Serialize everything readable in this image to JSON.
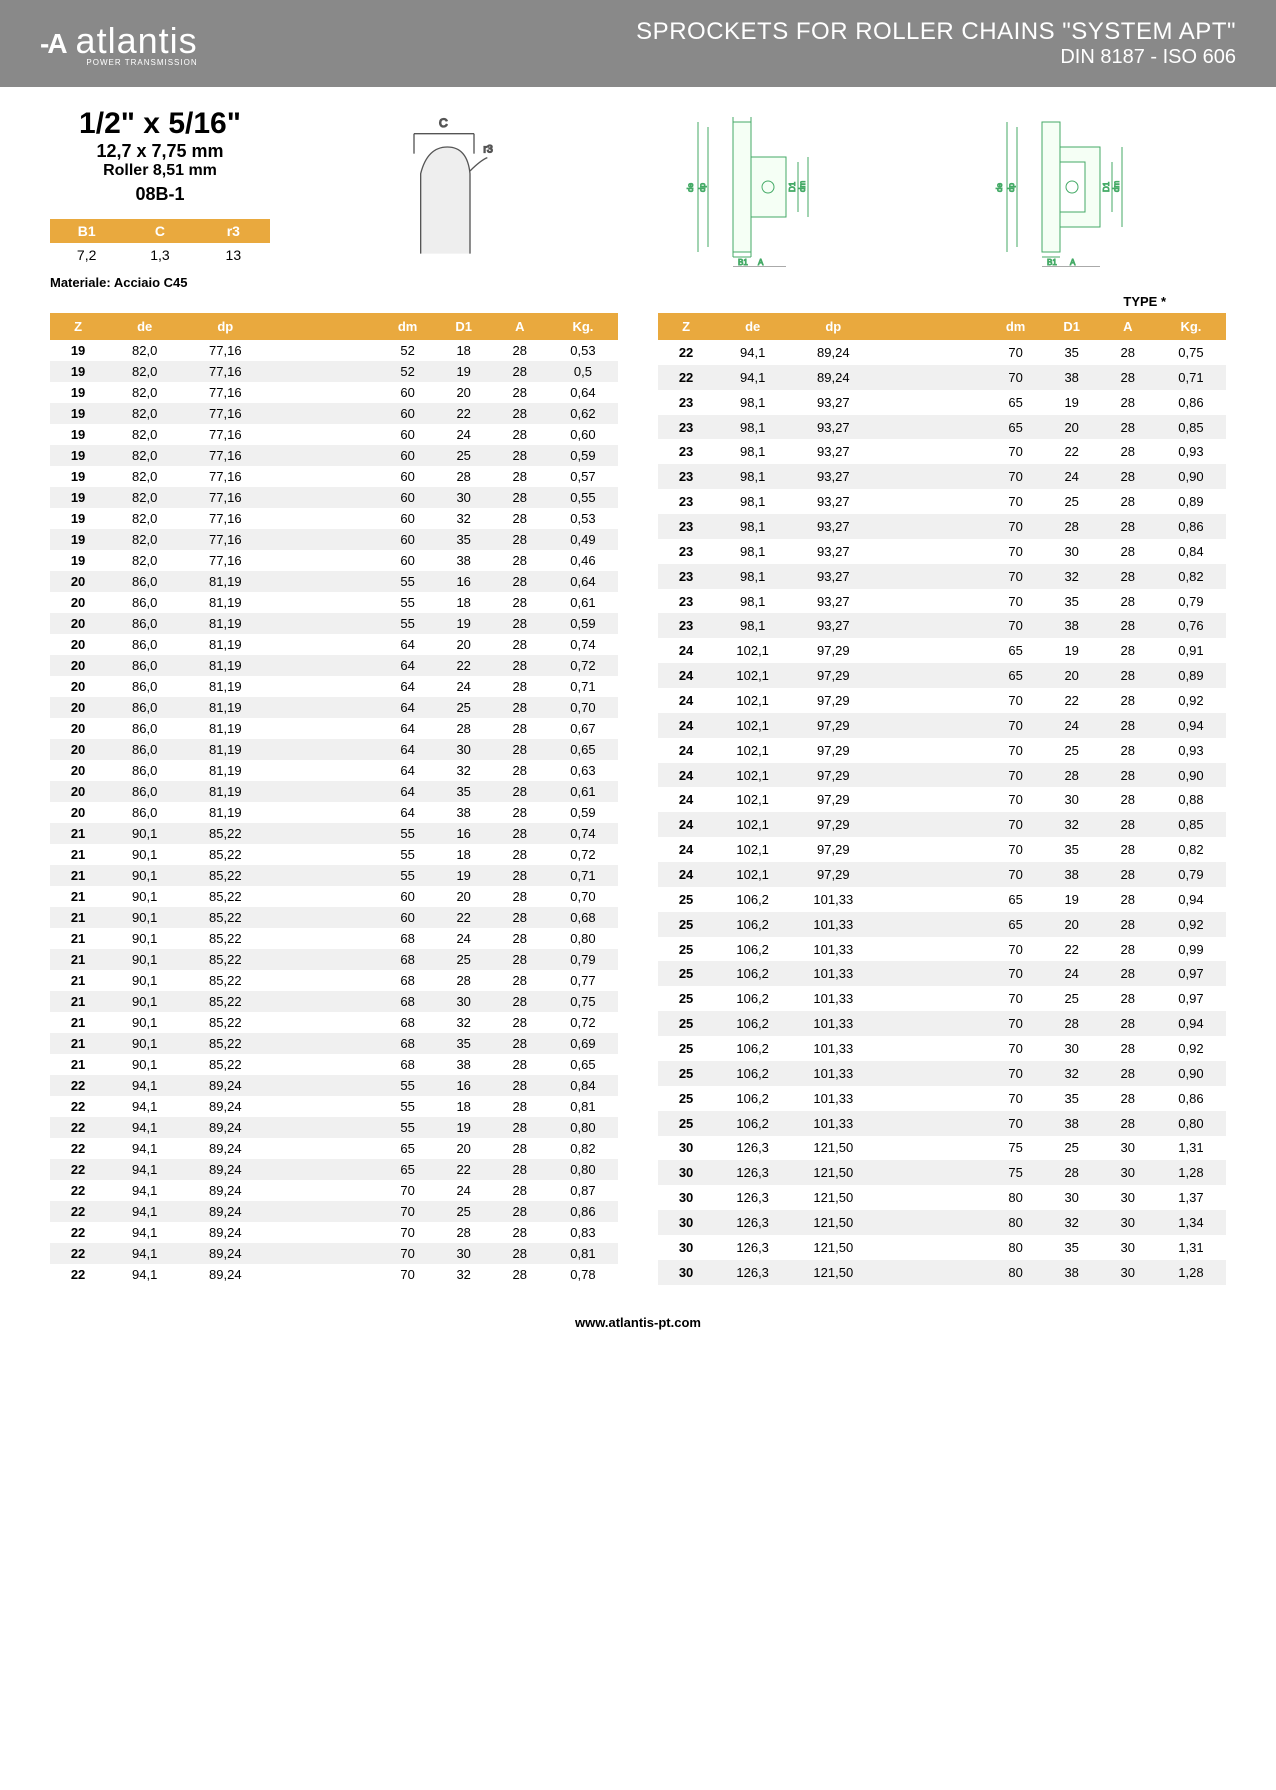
{
  "header": {
    "logo_icon": "-A",
    "logo_text": "atlantis",
    "logo_sub": "POWER TRANSMISSION",
    "title_line1": "SPROCKETS FOR ROLLER CHAINS \"SYSTEM APT\"",
    "title_line2": "DIN 8187 - ISO 606"
  },
  "spec": {
    "size": "1/2\" x 5/16\"",
    "mm": "12,7 x 7,75 mm",
    "roller": "Roller 8,51 mm",
    "code": "08B-1"
  },
  "bcr": {
    "headers": [
      "B1",
      "C",
      "r3"
    ],
    "values": [
      "7,2",
      "1,3",
      "13"
    ]
  },
  "material": "Materiale: Acciaio C45",
  "type_label": "TYPE *",
  "columns": [
    "Z",
    "de",
    "dp",
    "dm",
    "D1",
    "A",
    "Kg."
  ],
  "left_rows": [
    [
      "19",
      "82,0",
      "77,16",
      "52",
      "18",
      "28",
      "0,53"
    ],
    [
      "19",
      "82,0",
      "77,16",
      "52",
      "19",
      "28",
      "0,5"
    ],
    [
      "19",
      "82,0",
      "77,16",
      "60",
      "20",
      "28",
      "0,64"
    ],
    [
      "19",
      "82,0",
      "77,16",
      "60",
      "22",
      "28",
      "0,62"
    ],
    [
      "19",
      "82,0",
      "77,16",
      "60",
      "24",
      "28",
      "0,60"
    ],
    [
      "19",
      "82,0",
      "77,16",
      "60",
      "25",
      "28",
      "0,59"
    ],
    [
      "19",
      "82,0",
      "77,16",
      "60",
      "28",
      "28",
      "0,57"
    ],
    [
      "19",
      "82,0",
      "77,16",
      "60",
      "30",
      "28",
      "0,55"
    ],
    [
      "19",
      "82,0",
      "77,16",
      "60",
      "32",
      "28",
      "0,53"
    ],
    [
      "19",
      "82,0",
      "77,16",
      "60",
      "35",
      "28",
      "0,49"
    ],
    [
      "19",
      "82,0",
      "77,16",
      "60",
      "38",
      "28",
      "0,46"
    ],
    [
      "20",
      "86,0",
      "81,19",
      "55",
      "16",
      "28",
      "0,64"
    ],
    [
      "20",
      "86,0",
      "81,19",
      "55",
      "18",
      "28",
      "0,61"
    ],
    [
      "20",
      "86,0",
      "81,19",
      "55",
      "19",
      "28",
      "0,59"
    ],
    [
      "20",
      "86,0",
      "81,19",
      "64",
      "20",
      "28",
      "0,74"
    ],
    [
      "20",
      "86,0",
      "81,19",
      "64",
      "22",
      "28",
      "0,72"
    ],
    [
      "20",
      "86,0",
      "81,19",
      "64",
      "24",
      "28",
      "0,71"
    ],
    [
      "20",
      "86,0",
      "81,19",
      "64",
      "25",
      "28",
      "0,70"
    ],
    [
      "20",
      "86,0",
      "81,19",
      "64",
      "28",
      "28",
      "0,67"
    ],
    [
      "20",
      "86,0",
      "81,19",
      "64",
      "30",
      "28",
      "0,65"
    ],
    [
      "20",
      "86,0",
      "81,19",
      "64",
      "32",
      "28",
      "0,63"
    ],
    [
      "20",
      "86,0",
      "81,19",
      "64",
      "35",
      "28",
      "0,61"
    ],
    [
      "20",
      "86,0",
      "81,19",
      "64",
      "38",
      "28",
      "0,59"
    ],
    [
      "21",
      "90,1",
      "85,22",
      "55",
      "16",
      "28",
      "0,74"
    ],
    [
      "21",
      "90,1",
      "85,22",
      "55",
      "18",
      "28",
      "0,72"
    ],
    [
      "21",
      "90,1",
      "85,22",
      "55",
      "19",
      "28",
      "0,71"
    ],
    [
      "21",
      "90,1",
      "85,22",
      "60",
      "20",
      "28",
      "0,70"
    ],
    [
      "21",
      "90,1",
      "85,22",
      "60",
      "22",
      "28",
      "0,68"
    ],
    [
      "21",
      "90,1",
      "85,22",
      "68",
      "24",
      "28",
      "0,80"
    ],
    [
      "21",
      "90,1",
      "85,22",
      "68",
      "25",
      "28",
      "0,79"
    ],
    [
      "21",
      "90,1",
      "85,22",
      "68",
      "28",
      "28",
      "0,77"
    ],
    [
      "21",
      "90,1",
      "85,22",
      "68",
      "30",
      "28",
      "0,75"
    ],
    [
      "21",
      "90,1",
      "85,22",
      "68",
      "32",
      "28",
      "0,72"
    ],
    [
      "21",
      "90,1",
      "85,22",
      "68",
      "35",
      "28",
      "0,69"
    ],
    [
      "21",
      "90,1",
      "85,22",
      "68",
      "38",
      "28",
      "0,65"
    ],
    [
      "22",
      "94,1",
      "89,24",
      "55",
      "16",
      "28",
      "0,84"
    ],
    [
      "22",
      "94,1",
      "89,24",
      "55",
      "18",
      "28",
      "0,81"
    ],
    [
      "22",
      "94,1",
      "89,24",
      "55",
      "19",
      "28",
      "0,80"
    ],
    [
      "22",
      "94,1",
      "89,24",
      "65",
      "20",
      "28",
      "0,82"
    ],
    [
      "22",
      "94,1",
      "89,24",
      "65",
      "22",
      "28",
      "0,80"
    ],
    [
      "22",
      "94,1",
      "89,24",
      "70",
      "24",
      "28",
      "0,87"
    ],
    [
      "22",
      "94,1",
      "89,24",
      "70",
      "25",
      "28",
      "0,86"
    ],
    [
      "22",
      "94,1",
      "89,24",
      "70",
      "28",
      "28",
      "0,83"
    ],
    [
      "22",
      "94,1",
      "89,24",
      "70",
      "30",
      "28",
      "0,81"
    ],
    [
      "22",
      "94,1",
      "89,24",
      "70",
      "32",
      "28",
      "0,78"
    ]
  ],
  "right_rows": [
    [
      "22",
      "94,1",
      "89,24",
      "70",
      "35",
      "28",
      "0,75"
    ],
    [
      "22",
      "94,1",
      "89,24",
      "70",
      "38",
      "28",
      "0,71"
    ],
    [
      "23",
      "98,1",
      "93,27",
      "65",
      "19",
      "28",
      "0,86"
    ],
    [
      "23",
      "98,1",
      "93,27",
      "65",
      "20",
      "28",
      "0,85"
    ],
    [
      "23",
      "98,1",
      "93,27",
      "70",
      "22",
      "28",
      "0,93"
    ],
    [
      "23",
      "98,1",
      "93,27",
      "70",
      "24",
      "28",
      "0,90"
    ],
    [
      "23",
      "98,1",
      "93,27",
      "70",
      "25",
      "28",
      "0,89"
    ],
    [
      "23",
      "98,1",
      "93,27",
      "70",
      "28",
      "28",
      "0,86"
    ],
    [
      "23",
      "98,1",
      "93,27",
      "70",
      "30",
      "28",
      "0,84"
    ],
    [
      "23",
      "98,1",
      "93,27",
      "70",
      "32",
      "28",
      "0,82"
    ],
    [
      "23",
      "98,1",
      "93,27",
      "70",
      "35",
      "28",
      "0,79"
    ],
    [
      "23",
      "98,1",
      "93,27",
      "70",
      "38",
      "28",
      "0,76"
    ],
    [
      "24",
      "102,1",
      "97,29",
      "65",
      "19",
      "28",
      "0,91"
    ],
    [
      "24",
      "102,1",
      "97,29",
      "65",
      "20",
      "28",
      "0,89"
    ],
    [
      "24",
      "102,1",
      "97,29",
      "70",
      "22",
      "28",
      "0,92"
    ],
    [
      "24",
      "102,1",
      "97,29",
      "70",
      "24",
      "28",
      "0,94"
    ],
    [
      "24",
      "102,1",
      "97,29",
      "70",
      "25",
      "28",
      "0,93"
    ],
    [
      "24",
      "102,1",
      "97,29",
      "70",
      "28",
      "28",
      "0,90"
    ],
    [
      "24",
      "102,1",
      "97,29",
      "70",
      "30",
      "28",
      "0,88"
    ],
    [
      "24",
      "102,1",
      "97,29",
      "70",
      "32",
      "28",
      "0,85"
    ],
    [
      "24",
      "102,1",
      "97,29",
      "70",
      "35",
      "28",
      "0,82"
    ],
    [
      "24",
      "102,1",
      "97,29",
      "70",
      "38",
      "28",
      "0,79"
    ],
    [
      "25",
      "106,2",
      "101,33",
      "65",
      "19",
      "28",
      "0,94"
    ],
    [
      "25",
      "106,2",
      "101,33",
      "65",
      "20",
      "28",
      "0,92"
    ],
    [
      "25",
      "106,2",
      "101,33",
      "70",
      "22",
      "28",
      "0,99"
    ],
    [
      "25",
      "106,2",
      "101,33",
      "70",
      "24",
      "28",
      "0,97"
    ],
    [
      "25",
      "106,2",
      "101,33",
      "70",
      "25",
      "28",
      "0,97"
    ],
    [
      "25",
      "106,2",
      "101,33",
      "70",
      "28",
      "28",
      "0,94"
    ],
    [
      "25",
      "106,2",
      "101,33",
      "70",
      "30",
      "28",
      "0,92"
    ],
    [
      "25",
      "106,2",
      "101,33",
      "70",
      "32",
      "28",
      "0,90"
    ],
    [
      "25",
      "106,2",
      "101,33",
      "70",
      "35",
      "28",
      "0,86"
    ],
    [
      "25",
      "106,2",
      "101,33",
      "70",
      "38",
      "28",
      "0,80"
    ],
    [
      "30",
      "126,3",
      "121,50",
      "75",
      "25",
      "30",
      "1,31"
    ],
    [
      "30",
      "126,3",
      "121,50",
      "75",
      "28",
      "30",
      "1,28"
    ],
    [
      "30",
      "126,3",
      "121,50",
      "80",
      "30",
      "30",
      "1,37"
    ],
    [
      "30",
      "126,3",
      "121,50",
      "80",
      "32",
      "30",
      "1,34"
    ],
    [
      "30",
      "126,3",
      "121,50",
      "80",
      "35",
      "30",
      "1,31"
    ],
    [
      "30",
      "126,3",
      "121,50",
      "80",
      "38",
      "30",
      "1,28"
    ]
  ],
  "footer": "www.atlantis-pt.com",
  "colors": {
    "header_bg": "#898989",
    "accent": "#e9a93e",
    "alt_row": "#f0f0f0"
  }
}
